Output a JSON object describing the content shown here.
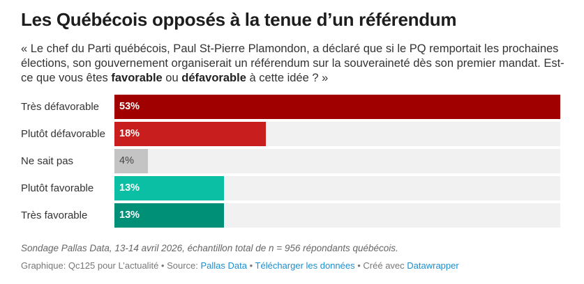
{
  "title": "Les Québécois opposés à la tenue d’un référendum",
  "description": {
    "part1": "« Le chef du Parti québécois, Paul St-Pierre Plamondon, a déclaré que si le PQ remportait les prochaines élections, son gouvernement organiserait un référendum sur la souveraineté dès son premier mandat. Est-ce que vous êtes ",
    "bold1": "favorable",
    "part2": " ou ",
    "bold2": "défavorable",
    "part3": " à cette idée ? »"
  },
  "chart_data": {
    "type": "bar",
    "orientation": "horizontal",
    "categories": [
      "Très défavorable",
      "Plutôt défavorable",
      "Ne sait pas",
      "Plutôt favorable",
      "Très favorable"
    ],
    "values": [
      53,
      18,
      4,
      13,
      13
    ],
    "labels": [
      "53%",
      "18%",
      "4%",
      "13%",
      "13%"
    ],
    "colors": [
      "#a10000",
      "#c81e1e",
      "#c4c4c4",
      "#0abfa3",
      "#008f77"
    ],
    "label_colors": [
      "#ffffff",
      "#ffffff",
      "#444444",
      "#ffffff",
      "#ffffff"
    ],
    "xlim": [
      0,
      53
    ]
  },
  "footer": {
    "note": "Sondage Pallas Data, 13-14 avril 2026, échantillon total de n = 956 répondants québécois.",
    "graphic_prefix": "Graphique: Qc125 pour L’actualité • Source: ",
    "source_link": "Pallas Data",
    "sep1": " • ",
    "download_link": "Télécharger les données",
    "sep2": " • Créé avec ",
    "datawrapper_link": "Datawrapper"
  }
}
